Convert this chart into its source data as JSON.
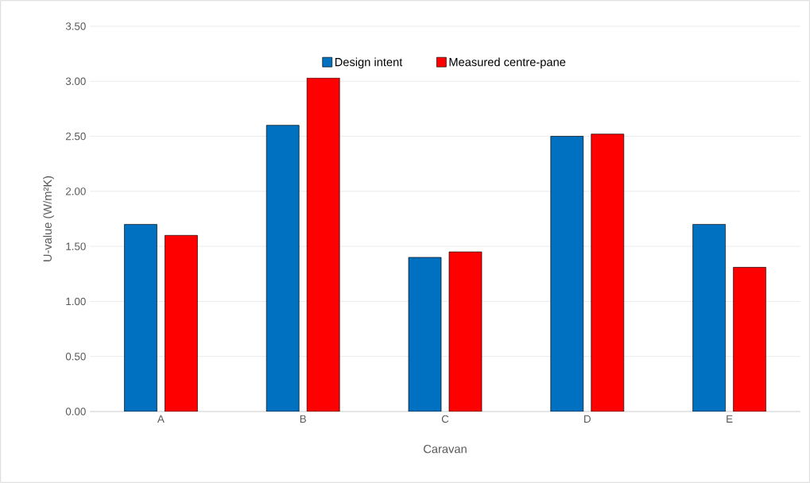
{
  "chart_data": {
    "type": "bar",
    "xlabel": "Caravan",
    "ylabel": "U-value (W/m²K)",
    "categories": [
      "A",
      "B",
      "C",
      "D",
      "E"
    ],
    "series": [
      {
        "name": "Design intent",
        "color": "#0070c0",
        "values": [
          1.7,
          2.6,
          1.4,
          2.5,
          1.7
        ]
      },
      {
        "name": "Measured centre-pane",
        "color": "#ff0000",
        "values": [
          1.6,
          3.03,
          1.45,
          2.52,
          1.31
        ]
      }
    ],
    "ylim": [
      0,
      3.5
    ],
    "yticks": [
      {
        "value": 0,
        "label": "0.00"
      },
      {
        "value": 0.5,
        "label": "0.50"
      },
      {
        "value": 1,
        "label": "1.00"
      },
      {
        "value": 1.5,
        "label": "1.50"
      },
      {
        "value": 2,
        "label": "2.00"
      },
      {
        "value": 2.5,
        "label": "2.50"
      },
      {
        "value": 3,
        "label": "3.00"
      },
      {
        "value": 3.5,
        "label": "3.50"
      }
    ],
    "grid": "y",
    "legend": "top"
  }
}
